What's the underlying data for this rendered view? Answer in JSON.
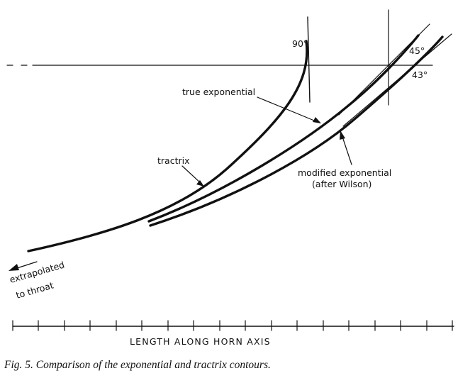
{
  "figure": {
    "labels": {
      "angle_90": "90°",
      "angle_45": "45°",
      "angle_43": "43°",
      "true_exponential": "true exponential",
      "tractrix": "tractrix",
      "modified_line1": "modified exponential",
      "modified_line2": "(after Wilson)",
      "extrap_line1": "extrapolated",
      "extrap_line2": "to throat"
    },
    "axis_title": "LENGTH ALONG HORN AXIS",
    "caption": "Fig. 5. Comparison of the exponential and tractrix contours.",
    "colors": {
      "ink": "#111111",
      "paper": "#ffffff"
    }
  }
}
